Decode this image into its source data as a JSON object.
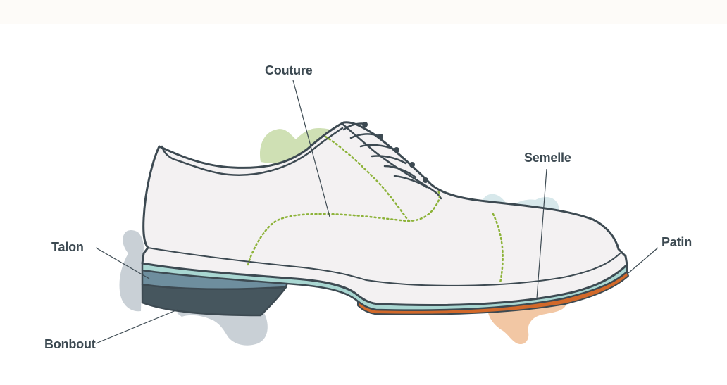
{
  "labels": {
    "couture": "Couture",
    "semelle": "Semelle",
    "talon": "Talon",
    "patin": "Patin",
    "bonbout": "Bonbout"
  },
  "colors": {
    "outline": "#3d4a52",
    "upper": "#f3f1f2",
    "stitching": "#8db33a",
    "welt": "#a9d7d2",
    "heel_block": "#6e8e9e",
    "heel_cap": "#46565e",
    "outsole_patin": "#d2692a",
    "blob_green": "#cfe0b4",
    "blob_blue": "#d7e8eb",
    "blob_grey": "#c9d0d6",
    "blob_peach": "#f2c7a4"
  }
}
